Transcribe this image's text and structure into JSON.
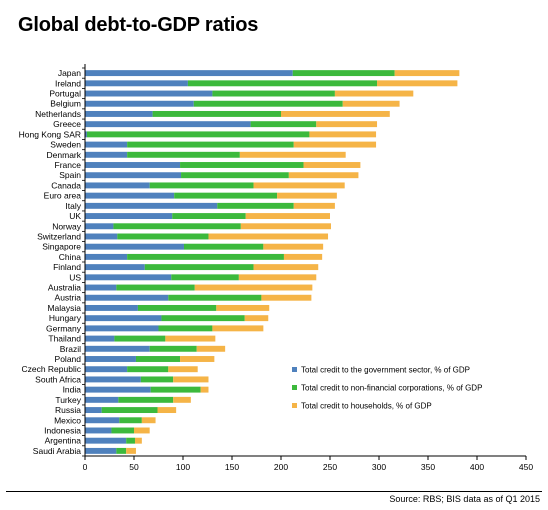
{
  "chart_data": {
    "type": "bar",
    "orientation": "horizontal",
    "stacked": true,
    "title": "Global debt-to-GDP ratios",
    "categories": [
      "Japan",
      "Ireland",
      "Portugal",
      "Belgium",
      "Netherlands",
      "Greece",
      "Hong Kong SAR",
      "Sweden",
      "Denmark",
      "France",
      "Spain",
      "Canada",
      "Euro area",
      "Italy",
      "UK",
      "Norway",
      "Switzerland",
      "Singapore",
      "China",
      "Finland",
      "US",
      "Australia",
      "Austria",
      "Malaysia",
      "Hungary",
      "Germany",
      "Thailand",
      "Brazil",
      "Poland",
      "Czech Republic",
      "South Africa",
      "India",
      "Turkey",
      "Russia",
      "Mexico",
      "Indonesia",
      "Argentina",
      "Saudi Arabia"
    ],
    "series": [
      {
        "name": "Total credit to the government sector, % of GDP",
        "color": "#4f81bd",
        "values": [
          212,
          105,
          130,
          111,
          69,
          169,
          2,
          43,
          43,
          97,
          98,
          66,
          91,
          135,
          89,
          29,
          33,
          101,
          43,
          61,
          88,
          32,
          85,
          54,
          78,
          75,
          30,
          66,
          52,
          43,
          57,
          67,
          34,
          17,
          35,
          27,
          42,
          32
        ]
      },
      {
        "name": "Total credit to non-financial corporations, % of GDP",
        "color": "#3cb93c",
        "values": [
          104,
          193,
          125,
          152,
          131,
          67,
          227,
          170,
          115,
          126,
          110,
          106,
          105,
          78,
          75,
          130,
          93,
          81,
          160,
          111,
          69,
          80,
          95,
          80,
          85,
          55,
          52,
          48,
          45,
          42,
          33,
          51,
          56,
          57,
          23,
          23,
          9,
          10
        ]
      },
      {
        "name": "Total credit to households, % of GDP",
        "color": "#f5b447",
        "values": [
          66,
          82,
          80,
          58,
          111,
          62,
          68,
          84,
          108,
          58,
          71,
          93,
          61,
          42,
          86,
          92,
          122,
          61,
          39,
          66,
          79,
          120,
          51,
          54,
          24,
          52,
          51,
          29,
          35,
          30,
          36,
          8,
          18,
          19,
          14,
          16,
          7,
          10
        ]
      }
    ],
    "xlim": [
      0,
      450
    ],
    "xticks": [
      "0",
      "50",
      "100",
      "150",
      "200",
      "250",
      "300",
      "350",
      "400",
      "450"
    ],
    "legend": "bottom-right, inside plot",
    "grid": false
  },
  "source": "Source:  RBS; BIS data as of Q1 2015"
}
